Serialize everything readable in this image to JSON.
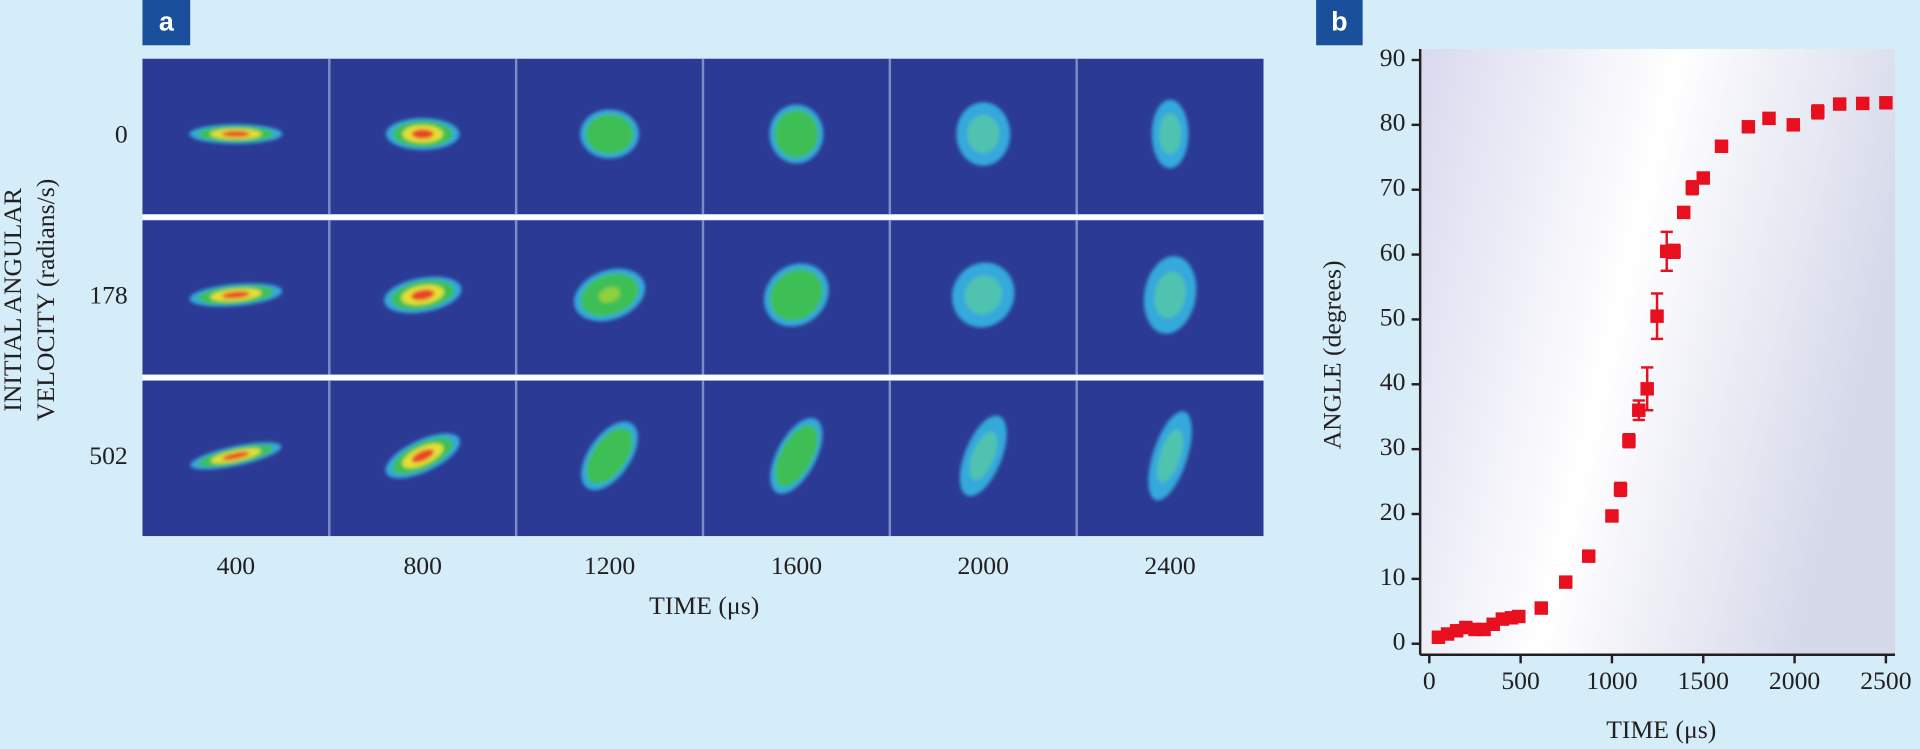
{
  "panel_a": {
    "label": "a",
    "y_label_lines": [
      "INITIAL ANGULAR",
      "VELOCITY (radians/s)"
    ],
    "row_labels": [
      0,
      178,
      502
    ],
    "col_labels": [
      400,
      800,
      1200,
      1600,
      2000,
      2400
    ],
    "x_label": "TIME (μs)"
  },
  "chart_data": {
    "type": "scatter",
    "panel_label": "b",
    "x_label": "TIME (μs)",
    "y_label": "ANGLE (degrees)",
    "x": [
      50,
      100,
      150,
      200,
      250,
      300,
      350,
      400,
      450,
      490,
      613,
      747,
      873,
      1000,
      1047,
      1093,
      1147,
      1193,
      1247,
      1300,
      1340,
      1393,
      1440,
      1500,
      1600,
      1747,
      1860,
      1993,
      2127,
      2247,
      2373,
      2500
    ],
    "series": [
      {
        "color": "#e8101e",
        "values": [
          1.0,
          1.5,
          2.0,
          2.5,
          2.2,
          2.2,
          3.0,
          3.8,
          4.0,
          4.2,
          5.5,
          9.5,
          13.5,
          19.7,
          23.8,
          31.3,
          36.0,
          39.3,
          50.5,
          60.5,
          60.5,
          66.5,
          70.3,
          71.8,
          76.7,
          79.7,
          81.0,
          80.0,
          82.0,
          83.2,
          83.3,
          83.4
        ],
        "errors": [
          null,
          null,
          null,
          null,
          null,
          null,
          null,
          null,
          null,
          null,
          null,
          null,
          null,
          null,
          1.0,
          1.0,
          1.5,
          3.3,
          3.5,
          3.0,
          1.0,
          0.8,
          1.0,
          null,
          null,
          null,
          null,
          null,
          1.0,
          null,
          null,
          null
        ]
      }
    ],
    "xlim": [
      -50,
      2550
    ],
    "ylim": [
      -1.7,
      91.7
    ],
    "xticks": [
      0,
      500,
      1000,
      1500,
      2000,
      2500
    ],
    "yticks": [
      0,
      10,
      20,
      30,
      40,
      50,
      60,
      70,
      80,
      90
    ]
  }
}
